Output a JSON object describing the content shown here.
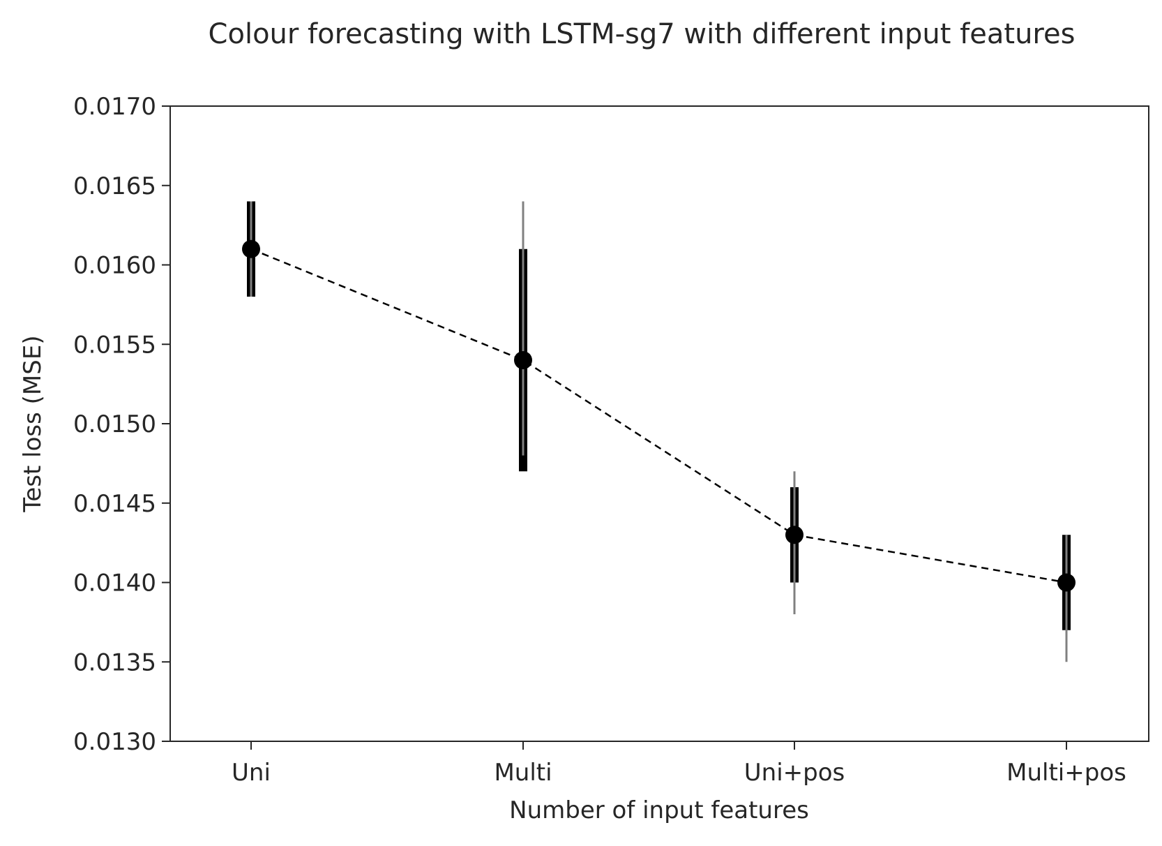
{
  "chart_data": {
    "type": "errorbar-line",
    "title": "Colour forecasting with LSTM-sg7 with different input features",
    "xlabel": "Number of input features",
    "ylabel": "Test loss (MSE)",
    "categories": [
      "Uni",
      "Multi",
      "Uni+pos",
      "Multi+pos"
    ],
    "ylim": [
      0.013,
      0.017
    ],
    "yticks": [
      0.013,
      0.0135,
      0.014,
      0.0145,
      0.015,
      0.0155,
      0.016,
      0.0165,
      0.017
    ],
    "ytick_labels": [
      "0.0130",
      "0.0135",
      "0.0140",
      "0.0145",
      "0.0150",
      "0.0155",
      "0.0160",
      "0.0165",
      "0.0170"
    ],
    "series": [
      {
        "values": [
          0.0161,
          0.0154,
          0.0143,
          0.014
        ],
        "inner_range": [
          [
            0.0158,
            0.0164
          ],
          [
            0.0147,
            0.0161
          ],
          [
            0.014,
            0.0146
          ],
          [
            0.0137,
            0.0143
          ]
        ],
        "outer_range": [
          [
            0.0158,
            0.0164
          ],
          [
            0.0148,
            0.0164
          ],
          [
            0.0138,
            0.0147
          ],
          [
            0.0135,
            0.0143
          ]
        ]
      }
    ],
    "line_style": "dashed",
    "colors": {
      "marker": "#000000",
      "line": "#000000",
      "inner_bar": "#000000",
      "outer_bar": "#808080",
      "axis": "#262626",
      "text": "#262626"
    },
    "grid": false,
    "legend": "none"
  }
}
